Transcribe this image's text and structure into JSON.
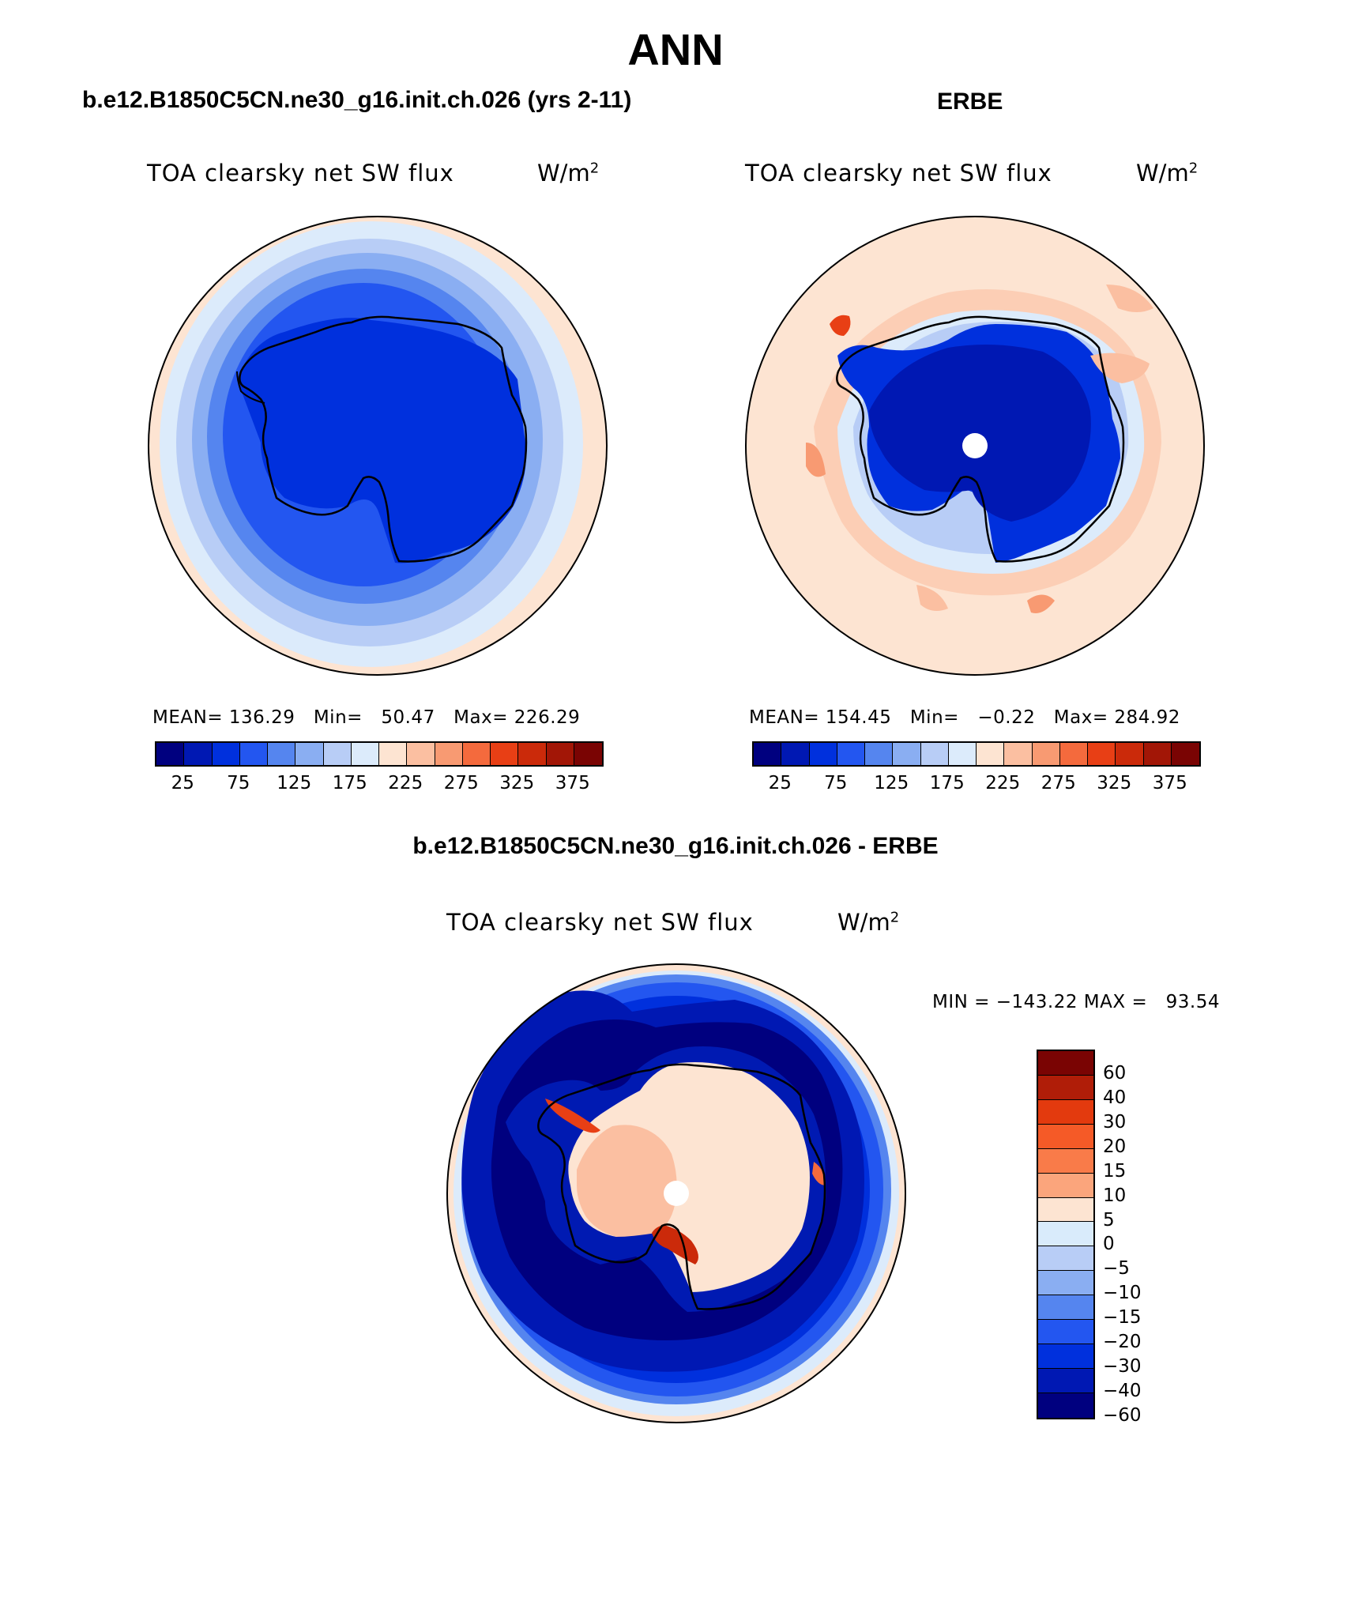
{
  "title": "ANN",
  "left_panel": {
    "case_title": "b.e12.B1850C5CN.ne30_g16.init.ch.026 (yrs 2-11)",
    "variable": "TOA clearsky net SW flux",
    "units": "W/m",
    "units_exp": "2",
    "mean_label": "MEAN=",
    "mean": "136.29",
    "min_label": "Min=",
    "min": "50.47",
    "max_label": "Max=",
    "max": "226.29"
  },
  "right_panel": {
    "case_title": "ERBE",
    "variable": "TOA clearsky net SW flux",
    "units": "W/m",
    "units_exp": "2",
    "mean_label": "MEAN=",
    "mean": "154.45",
    "min_label": "Min=",
    "min": "−0.22",
    "max_label": "Max=",
    "max": "284.92"
  },
  "diff_panel": {
    "case_title": "b.e12.B1850C5CN.ne30_g16.init.ch.026 - ERBE",
    "variable": "TOA clearsky net SW flux",
    "units": "W/m",
    "units_exp": "2",
    "min_label": "MIN =",
    "min": "−143.22",
    "max_label": "MAX =",
    "max": "93.54"
  },
  "abs_colorbar": {
    "colors": [
      "#00007f",
      "#0018b3",
      "#0030dd",
      "#2356f0",
      "#5585ef",
      "#8aaef2",
      "#b8cdf6",
      "#dcebfb",
      "#fde4d2",
      "#fbbfa1",
      "#f89a72",
      "#f46a3d",
      "#e83f15",
      "#cb2a0a",
      "#a21606",
      "#7a0403"
    ],
    "tick_labels": [
      "25",
      "75",
      "125",
      "175",
      "225",
      "275",
      "325",
      "375"
    ]
  },
  "diff_colorbar": {
    "colors": [
      "#7a0403",
      "#b01d08",
      "#e33a0e",
      "#f55a27",
      "#f97b49",
      "#fba57c",
      "#fde4d2",
      "#d9ebfb",
      "#b8cdf6",
      "#8aaef2",
      "#5585ef",
      "#2356f0",
      "#0030dd",
      "#0018b3",
      "#00007f"
    ],
    "tick_labels": [
      "60",
      "40",
      "30",
      "20",
      "15",
      "10",
      "5",
      "0",
      "−5",
      "−10",
      "−15",
      "−20",
      "−30",
      "−40",
      "−60"
    ]
  }
}
